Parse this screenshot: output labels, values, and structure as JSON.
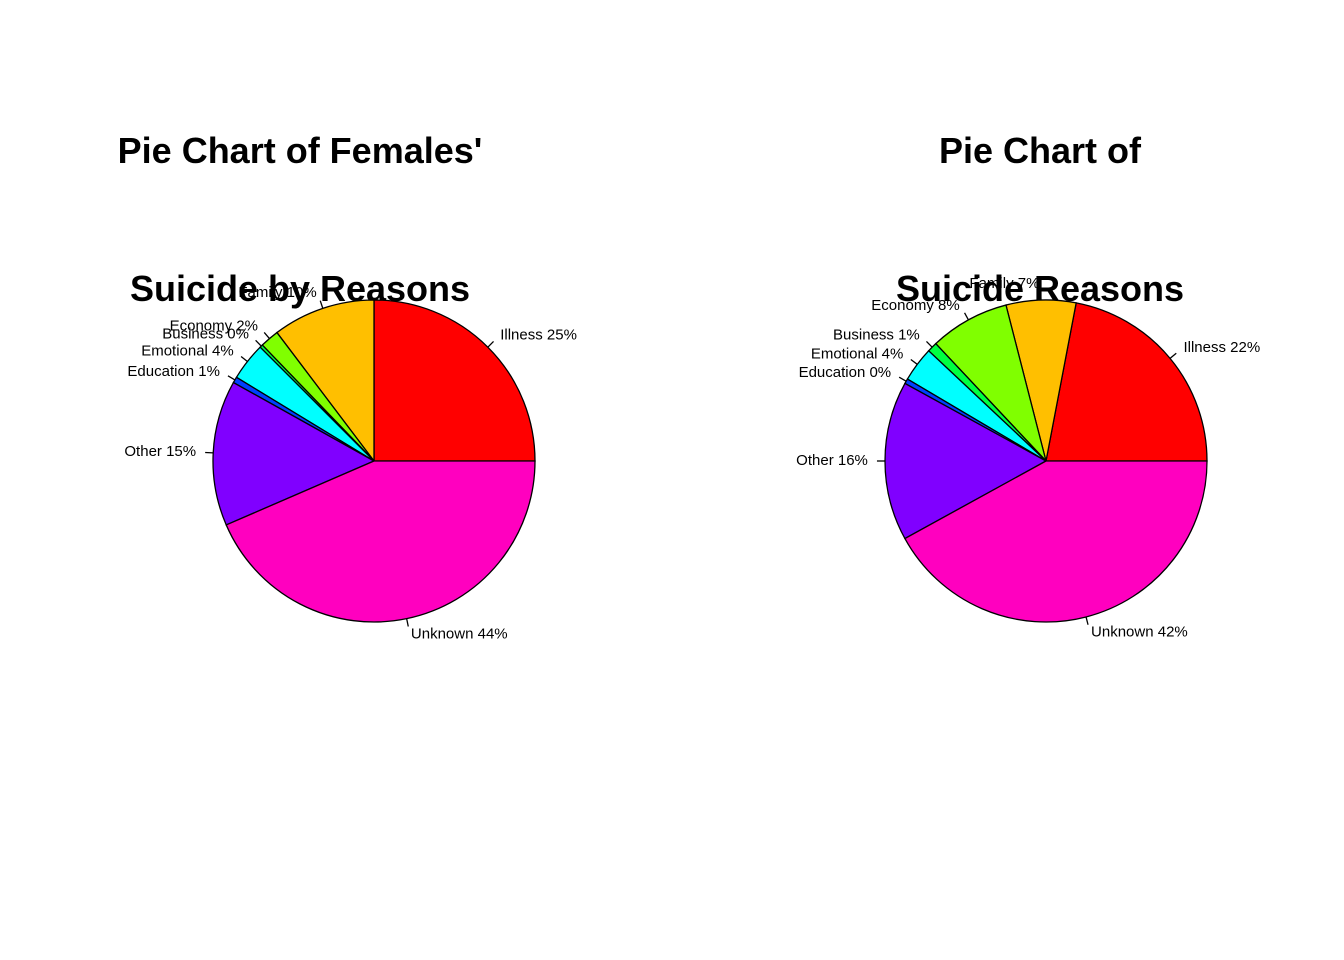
{
  "chart_data": [
    {
      "type": "pie",
      "title": "Pie Chart of Females'\n Suicide by Reasons",
      "title_lines": [
        "Pie Chart of Females'",
        "Suicide by Reasons"
      ],
      "slices": [
        {
          "label": "Illness 25%",
          "category": "Illness",
          "percent": 25,
          "value": 25.0,
          "color": "#FF0000"
        },
        {
          "label": "Family 10%",
          "category": "Family",
          "percent": 10,
          "value": 10.3,
          "color": "#FFBF00"
        },
        {
          "label": "Economy 2%",
          "category": "Economy",
          "percent": 2,
          "value": 1.9,
          "color": "#80FF00"
        },
        {
          "label": "Business 0%",
          "category": "Business",
          "percent": 0,
          "value": 0.3,
          "color": "#00FF40"
        },
        {
          "label": "Emotional 4%",
          "category": "Emotional",
          "percent": 4,
          "value": 3.8,
          "color": "#00FFFF"
        },
        {
          "label": "Education 1%",
          "category": "Education",
          "percent": 1,
          "value": 0.6,
          "color": "#0040FF"
        },
        {
          "label": "Other 15%",
          "category": "Other",
          "percent": 15,
          "value": 14.6,
          "color": "#8000FF"
        },
        {
          "label": "Unknown 44%",
          "category": "Unknown",
          "percent": 44,
          "value": 43.5,
          "color": "#FF00BF"
        }
      ]
    },
    {
      "type": "pie",
      "title": "Pie Chart of\nSuicide Reasons",
      "title_lines": [
        "Pie Chart of",
        "Suicide Reasons"
      ],
      "slices": [
        {
          "label": "Illness 22%",
          "category": "Illness",
          "percent": 22,
          "value": 22.0,
          "color": "#FF0000"
        },
        {
          "label": "Family 7%",
          "category": "Family",
          "percent": 7,
          "value": 7.0,
          "color": "#FFBF00"
        },
        {
          "label": "Economy 8%",
          "category": "Economy",
          "percent": 8,
          "value": 8.0,
          "color": "#80FF00"
        },
        {
          "label": "Business 1%",
          "category": "Business",
          "percent": 1,
          "value": 1.0,
          "color": "#00FF40"
        },
        {
          "label": "Emotional 4%",
          "category": "Emotional",
          "percent": 4,
          "value": 3.5,
          "color": "#00FFFF"
        },
        {
          "label": "Education 0%",
          "category": "Education",
          "percent": 0,
          "value": 0.5,
          "color": "#0040FF"
        },
        {
          "label": "Other 16%",
          "category": "Other",
          "percent": 16,
          "value": 16.0,
          "color": "#8000FF"
        },
        {
          "label": "Unknown 42%",
          "category": "Unknown",
          "percent": 42,
          "value": 42.0,
          "color": "#FF00BF"
        }
      ]
    }
  ]
}
